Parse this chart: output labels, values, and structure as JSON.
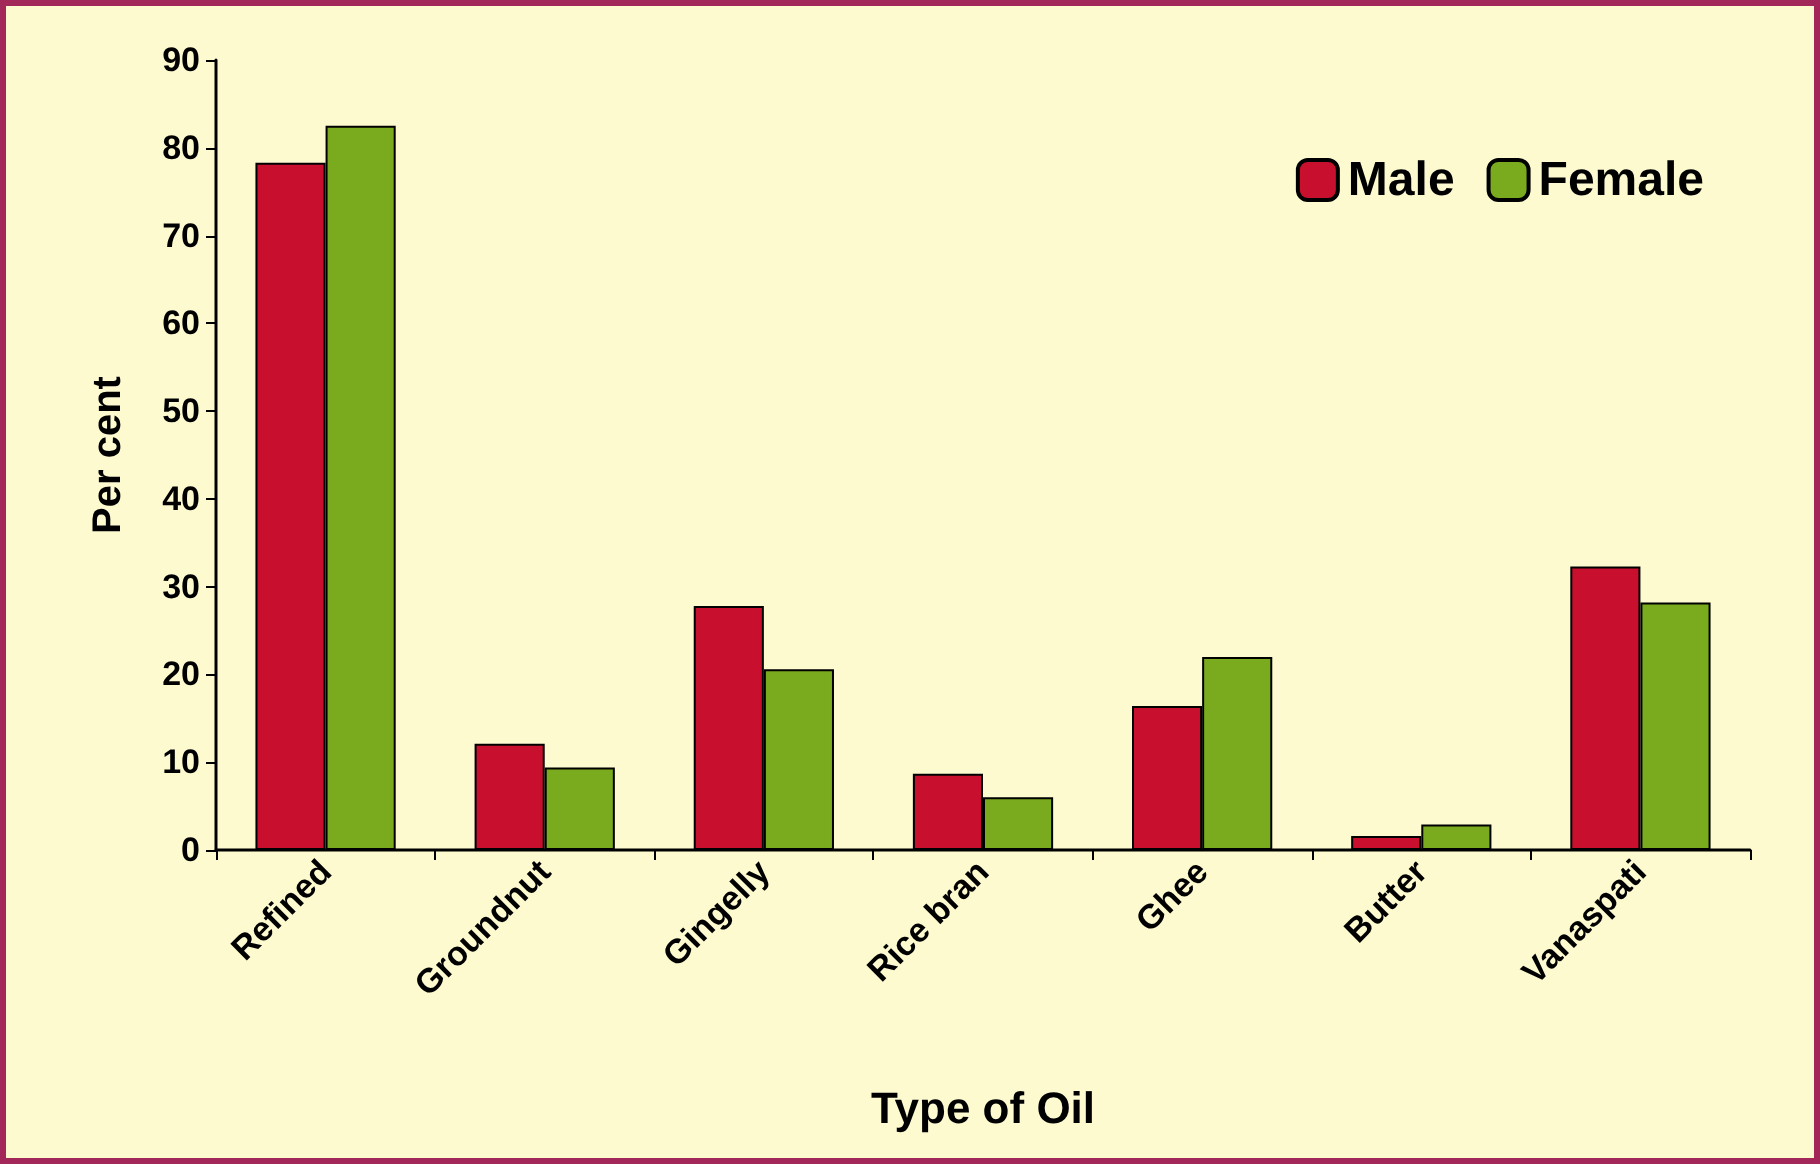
{
  "chart_data": {
    "type": "bar",
    "xlabel": "Type of Oil",
    "ylabel": "Per cent",
    "categories": [
      "Refined",
      "Groundnut",
      "Gingelly",
      "Rice bran",
      "Ghee",
      "Butter",
      "Vanaspati"
    ],
    "series": [
      {
        "name": "Male",
        "color": "#c8102e",
        "values": [
          78.3,
          12.1,
          27.8,
          8.7,
          16.4,
          1.6,
          32.3
        ]
      },
      {
        "name": "Female",
        "color": "#7aab1e",
        "values": [
          82.5,
          9.4,
          20.6,
          6,
          22,
          2.9,
          28.2
        ]
      }
    ],
    "ylim": [
      0,
      90
    ],
    "yticks": [
      0,
      10,
      20,
      30,
      40,
      50,
      60,
      70,
      80,
      90
    ],
    "grid": false,
    "legend": "top right"
  }
}
